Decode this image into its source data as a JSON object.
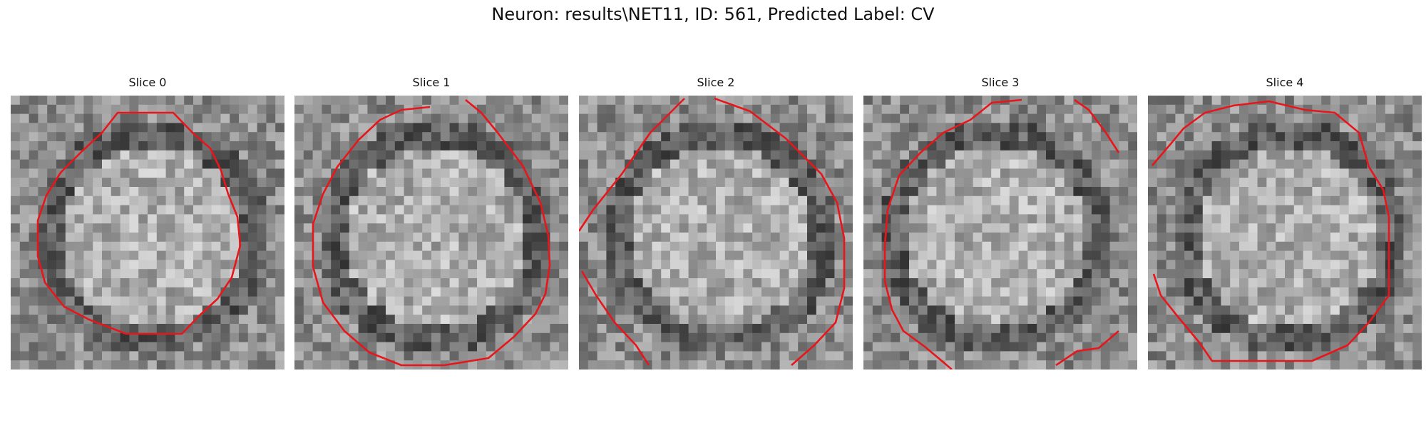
{
  "figure": {
    "title": "Neuron: results\\NET11, ID: 561, Predicted Label: CV"
  },
  "panels": [
    {
      "title": "Slice 0"
    },
    {
      "title": "Slice 1"
    },
    {
      "title": "Slice 2"
    },
    {
      "title": "Slice 3"
    },
    {
      "title": "Slice 4"
    }
  ],
  "colors": {
    "contour": "#e8161b",
    "background": "#ffffff"
  }
}
